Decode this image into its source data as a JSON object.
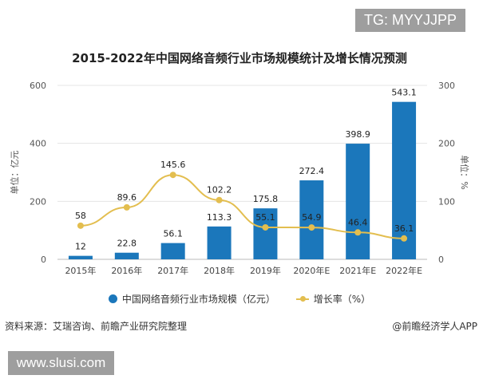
{
  "watermark_top": "TG: MYYJJPP",
  "watermark_bottom": "www.slusi.com",
  "source": "资料来源：艾瑞咨询、前瞻产业研究院整理",
  "credit": "@前瞻经济学人APP",
  "chart_data": {
    "type": "bar+line",
    "title": "2015-2022年中国网络音频行业市场规模统计及增长情况预测",
    "categories": [
      "2015年",
      "2016年",
      "2017年",
      "2018年",
      "2019年",
      "2020年E",
      "2021年E",
      "2022年E"
    ],
    "ylabel": "单位：亿元",
    "y2label": "单位：%",
    "ylim": [
      0,
      600
    ],
    "yticks": [
      0,
      200,
      400,
      600
    ],
    "y2lim": [
      0,
      300
    ],
    "y2ticks": [
      0,
      100,
      200,
      300
    ],
    "grid": true,
    "legend": "bottom",
    "series": [
      {
        "name": "中国网络音频行业市场规模（亿元）",
        "type": "bar",
        "axis": "left",
        "color": "#1b77bb",
        "values": [
          12,
          22.8,
          56.1,
          113.3,
          175.8,
          272.4,
          398.9,
          543.1
        ]
      },
      {
        "name": "增长率（%）",
        "type": "line",
        "axis": "right",
        "color": "#e3be4f",
        "values": [
          58,
          89.6,
          145.6,
          102.2,
          55.1,
          54.9,
          46.4,
          36.1
        ]
      }
    ]
  }
}
